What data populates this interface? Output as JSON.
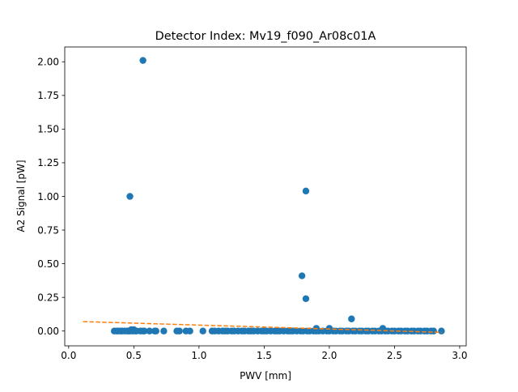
{
  "chart_data": {
    "type": "scatter",
    "title": "Detector Index: Mv19_f090_Ar08c01A",
    "xlabel": "PWV [mm]",
    "ylabel": "A2 Signal [pW]",
    "xlim": [
      -0.03,
      3.05
    ],
    "ylim": [
      -0.11,
      2.11
    ],
    "xticks": [
      0.0,
      0.5,
      1.0,
      1.5,
      2.0,
      2.5,
      3.0
    ],
    "xtick_labels": [
      "0.0",
      "0.5",
      "1.0",
      "1.5",
      "2.0",
      "2.5",
      "3.0"
    ],
    "yticks": [
      0.0,
      0.25,
      0.5,
      0.75,
      1.0,
      1.25,
      1.5,
      1.75,
      2.0
    ],
    "ytick_labels": [
      "0.00",
      "0.25",
      "0.50",
      "0.75",
      "1.00",
      "1.25",
      "1.50",
      "1.75",
      "2.00"
    ],
    "grid": false,
    "series": [
      {
        "name": "measurements",
        "kind": "scatter",
        "color": "#1f77b4",
        "x": [
          0.35,
          0.37,
          0.38,
          0.4,
          0.41,
          0.43,
          0.45,
          0.46,
          0.47,
          0.48,
          0.49,
          0.5,
          0.51,
          0.52,
          0.55,
          0.57,
          0.58,
          0.62,
          0.66,
          0.67,
          0.73,
          0.83,
          0.85,
          0.9,
          0.93,
          1.03,
          1.1,
          1.12,
          1.15,
          1.18,
          1.2,
          1.22,
          1.25,
          1.27,
          1.3,
          1.33,
          1.35,
          1.38,
          1.4,
          1.42,
          1.45,
          1.48,
          1.5,
          1.52,
          1.55,
          1.58,
          1.6,
          1.62,
          1.65,
          1.68,
          1.7,
          1.72,
          1.75,
          1.78,
          1.8,
          1.83,
          1.85,
          1.88,
          1.9,
          1.92,
          1.95,
          1.98,
          2.0,
          2.03,
          2.05,
          2.08,
          2.1,
          2.13,
          2.15,
          2.18,
          2.2,
          2.23,
          2.25,
          2.28,
          2.3,
          2.33,
          2.35,
          2.38,
          2.4,
          2.43,
          2.45,
          2.48,
          2.5,
          2.53,
          2.55,
          2.58,
          2.6,
          2.63,
          2.65,
          2.68,
          2.7,
          2.73,
          2.75,
          2.78,
          2.8,
          2.86,
          0.57,
          0.47,
          1.82,
          1.79,
          1.82,
          2.17,
          1.9,
          2.0,
          2.41
        ],
        "y": [
          0.0,
          0.0,
          0.0,
          0.0,
          0.0,
          0.0,
          0.0,
          0.0,
          0.0,
          0.01,
          0.0,
          0.01,
          0.0,
          0.0,
          0.0,
          0.0,
          0.0,
          0.0,
          0.0,
          0.0,
          0.0,
          0.0,
          0.0,
          0.0,
          0.0,
          0.0,
          0.0,
          0.0,
          0.0,
          0.0,
          0.0,
          0.0,
          0.0,
          0.0,
          0.0,
          0.0,
          0.0,
          0.0,
          0.0,
          0.0,
          0.0,
          0.0,
          0.0,
          0.0,
          0.0,
          0.0,
          0.0,
          0.0,
          0.0,
          0.0,
          0.0,
          0.0,
          0.0,
          0.0,
          0.0,
          0.0,
          0.0,
          0.0,
          0.0,
          0.0,
          0.0,
          0.0,
          0.0,
          0.0,
          0.0,
          0.0,
          0.0,
          0.0,
          0.0,
          0.0,
          0.0,
          0.0,
          0.0,
          0.0,
          0.0,
          0.0,
          0.0,
          0.0,
          0.0,
          0.0,
          0.0,
          0.0,
          0.0,
          0.0,
          0.0,
          0.0,
          0.0,
          0.0,
          0.0,
          0.0,
          0.0,
          0.0,
          0.0,
          0.0,
          0.0,
          0.0,
          2.01,
          1.0,
          1.04,
          0.41,
          0.24,
          0.09,
          0.02,
          0.02,
          0.02
        ]
      },
      {
        "name": "fit",
        "kind": "line",
        "style": "dashed",
        "color": "#ff7f0e",
        "x": [
          0.11,
          2.86
        ],
        "y": [
          0.07,
          -0.01
        ]
      }
    ]
  }
}
